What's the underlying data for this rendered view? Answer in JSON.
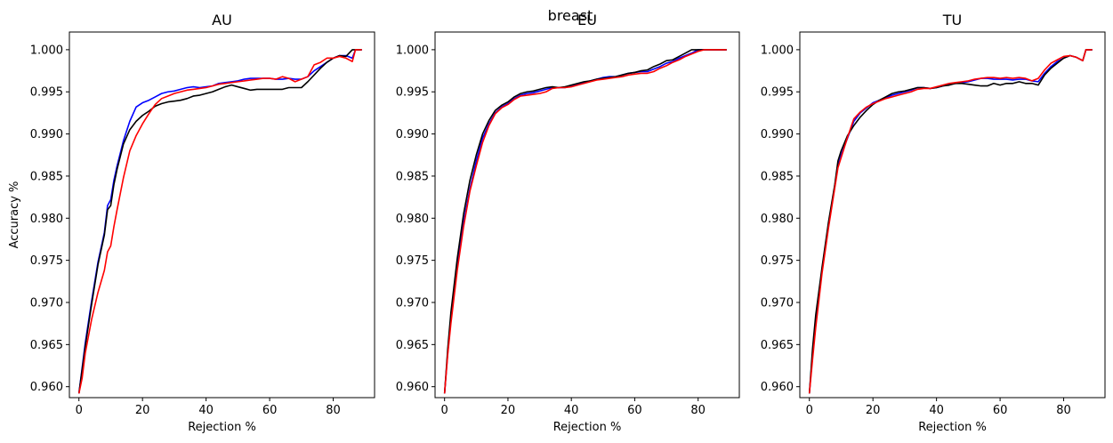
{
  "figure": {
    "suptitle": "breast"
  },
  "colors": {
    "blue": "#0000ff",
    "black": "#000000",
    "red": "#ff0000"
  },
  "chart_data": [
    {
      "type": "line",
      "title": "AU",
      "xlabel": "Rejection %",
      "ylabel": "Accuracy %",
      "xlim": [
        -3,
        93
      ],
      "ylim": [
        0.9587,
        1.0021
      ],
      "xticks": [
        0,
        20,
        40,
        60,
        80
      ],
      "yticks": [
        0.96,
        0.965,
        0.97,
        0.975,
        0.98,
        0.985,
        0.99,
        0.995,
        1.0
      ],
      "yticklabels": [
        "0.960",
        "0.965",
        "0.970",
        "0.975",
        "0.980",
        "0.985",
        "0.990",
        "0.995",
        "1.000"
      ],
      "grid": false,
      "series": [
        {
          "color": "#0000ff",
          "x": [
            0,
            1,
            2,
            4,
            6,
            8,
            9,
            10,
            11,
            12,
            14,
            16,
            18,
            20,
            22,
            24,
            26,
            28,
            30,
            32,
            34,
            36,
            38,
            40,
            42,
            44,
            46,
            48,
            50,
            52,
            54,
            56,
            58,
            60,
            62,
            64,
            66,
            68,
            70,
            72,
            74,
            76,
            78,
            80,
            82,
            84,
            86,
            87,
            89
          ],
          "y": [
            0.9592,
            0.9622,
            0.9652,
            0.9702,
            0.9748,
            0.9783,
            0.9815,
            0.9822,
            0.9845,
            0.9862,
            0.9892,
            0.9915,
            0.9932,
            0.9937,
            0.994,
            0.9944,
            0.9948,
            0.995,
            0.9951,
            0.9953,
            0.9955,
            0.9956,
            0.9955,
            0.9956,
            0.9957,
            0.996,
            0.9961,
            0.9962,
            0.9963,
            0.9965,
            0.9966,
            0.9966,
            0.9966,
            0.9966,
            0.9965,
            0.9965,
            0.9966,
            0.9965,
            0.9965,
            0.9968,
            0.9975,
            0.998,
            0.9985,
            0.999,
            0.9993,
            0.9993,
            0.999,
            1.0,
            1.0
          ]
        },
        {
          "color": "#000000",
          "x": [
            0,
            1,
            2,
            4,
            6,
            8,
            9,
            10,
            11,
            12,
            14,
            16,
            18,
            20,
            22,
            24,
            26,
            28,
            30,
            32,
            34,
            36,
            38,
            40,
            42,
            44,
            46,
            48,
            50,
            52,
            54,
            56,
            58,
            60,
            62,
            64,
            66,
            68,
            70,
            72,
            74,
            76,
            78,
            80,
            82,
            84,
            86,
            87,
            89
          ],
          "y": [
            0.9592,
            0.962,
            0.9648,
            0.9698,
            0.9745,
            0.978,
            0.981,
            0.9815,
            0.984,
            0.9858,
            0.9888,
            0.9905,
            0.9915,
            0.9922,
            0.9927,
            0.9933,
            0.9936,
            0.9938,
            0.9939,
            0.994,
            0.9942,
            0.9945,
            0.9946,
            0.9948,
            0.995,
            0.9953,
            0.9956,
            0.9958,
            0.9956,
            0.9954,
            0.9952,
            0.9953,
            0.9953,
            0.9953,
            0.9953,
            0.9953,
            0.9955,
            0.9955,
            0.9955,
            0.9962,
            0.997,
            0.9978,
            0.9985,
            0.999,
            0.9993,
            0.9992,
            1.0,
            1.0,
            1.0
          ]
        },
        {
          "color": "#ff0000",
          "x": [
            0,
            1,
            2,
            4,
            6,
            8,
            9,
            10,
            11,
            12,
            14,
            16,
            18,
            20,
            22,
            24,
            26,
            28,
            30,
            32,
            34,
            36,
            38,
            40,
            42,
            44,
            46,
            48,
            50,
            52,
            54,
            56,
            58,
            60,
            62,
            64,
            66,
            68,
            70,
            72,
            74,
            76,
            78,
            80,
            82,
            84,
            86,
            87,
            89
          ],
          "y": [
            0.9592,
            0.961,
            0.964,
            0.968,
            0.9712,
            0.9738,
            0.976,
            0.9767,
            0.979,
            0.981,
            0.9848,
            0.988,
            0.9898,
            0.9912,
            0.9924,
            0.9935,
            0.9942,
            0.9945,
            0.9948,
            0.995,
            0.9952,
            0.9953,
            0.9954,
            0.9955,
            0.9957,
            0.9959,
            0.996,
            0.9961,
            0.9962,
            0.9963,
            0.9964,
            0.9965,
            0.9966,
            0.9966,
            0.9965,
            0.9968,
            0.9966,
            0.9962,
            0.9965,
            0.9968,
            0.9982,
            0.9985,
            0.999,
            0.999,
            0.9992,
            0.999,
            0.9986,
            1.0,
            1.0
          ]
        }
      ]
    },
    {
      "type": "line",
      "title": "EU",
      "xlabel": "Rejection %",
      "ylabel": "",
      "xlim": [
        -3,
        93
      ],
      "ylim": [
        0.9587,
        1.0021
      ],
      "xticks": [
        0,
        20,
        40,
        60,
        80
      ],
      "yticks": [
        0.96,
        0.965,
        0.97,
        0.975,
        0.98,
        0.985,
        0.99,
        0.995,
        1.0
      ],
      "yticklabels": [
        "0.960",
        "0.965",
        "0.970",
        "0.975",
        "0.980",
        "0.985",
        "0.990",
        "0.995",
        "1.000"
      ],
      "grid": false,
      "series": [
        {
          "color": "#0000ff",
          "x": [
            0,
            1,
            2,
            4,
            6,
            8,
            10,
            12,
            14,
            16,
            18,
            20,
            22,
            24,
            26,
            28,
            30,
            32,
            34,
            36,
            38,
            40,
            42,
            44,
            46,
            48,
            50,
            52,
            54,
            56,
            58,
            60,
            62,
            64,
            66,
            68,
            70,
            72,
            74,
            76,
            78,
            80,
            82,
            84,
            86,
            88,
            89
          ],
          "y": [
            0.9592,
            0.964,
            0.968,
            0.9745,
            0.9795,
            0.9835,
            0.9868,
            0.9895,
            0.9912,
            0.9925,
            0.9932,
            0.9936,
            0.9942,
            0.9946,
            0.9948,
            0.9949,
            0.9951,
            0.9953,
            0.9955,
            0.9955,
            0.9955,
            0.9957,
            0.9959,
            0.9961,
            0.9963,
            0.9965,
            0.9967,
            0.9968,
            0.9968,
            0.997,
            0.9972,
            0.9973,
            0.9974,
            0.9974,
            0.9977,
            0.998,
            0.9984,
            0.9986,
            0.999,
            0.9993,
            0.9996,
            1.0,
            1.0,
            1.0,
            1.0,
            1.0,
            1.0
          ]
        },
        {
          "color": "#000000",
          "x": [
            0,
            1,
            2,
            4,
            6,
            8,
            10,
            12,
            14,
            16,
            18,
            20,
            22,
            24,
            26,
            28,
            30,
            32,
            34,
            36,
            38,
            40,
            42,
            44,
            46,
            48,
            50,
            52,
            54,
            56,
            58,
            60,
            62,
            64,
            66,
            68,
            70,
            72,
            74,
            76,
            78,
            80,
            82,
            84,
            86,
            88,
            89
          ],
          "y": [
            0.9592,
            0.9645,
            0.9688,
            0.9752,
            0.9805,
            0.9845,
            0.9875,
            0.99,
            0.9916,
            0.9928,
            0.9934,
            0.9938,
            0.9944,
            0.9948,
            0.995,
            0.9951,
            0.9953,
            0.9955,
            0.9956,
            0.9955,
            0.9956,
            0.9958,
            0.996,
            0.9962,
            0.9963,
            0.9965,
            0.9966,
            0.9967,
            0.9968,
            0.997,
            0.9972,
            0.9973,
            0.9975,
            0.9976,
            0.998,
            0.9983,
            0.9987,
            0.9988,
            0.9992,
            0.9996,
            1.0,
            1.0,
            1.0,
            1.0,
            1.0,
            1.0,
            1.0
          ]
        },
        {
          "color": "#ff0000",
          "x": [
            0,
            1,
            2,
            4,
            6,
            8,
            10,
            12,
            14,
            16,
            18,
            20,
            22,
            24,
            26,
            28,
            30,
            32,
            34,
            36,
            38,
            40,
            42,
            44,
            46,
            48,
            50,
            52,
            54,
            56,
            58,
            60,
            62,
            64,
            66,
            68,
            70,
            72,
            74,
            76,
            78,
            80,
            82,
            84,
            86,
            88,
            89
          ],
          "y": [
            0.9592,
            0.9638,
            0.9675,
            0.9738,
            0.979,
            0.9832,
            0.9862,
            0.989,
            0.991,
            0.9924,
            0.9931,
            0.9935,
            0.9941,
            0.9945,
            0.9946,
            0.9947,
            0.9948,
            0.995,
            0.9954,
            0.9955,
            0.9955,
            0.9956,
            0.9958,
            0.996,
            0.9962,
            0.9964,
            0.9965,
            0.9966,
            0.9967,
            0.9968,
            0.997,
            0.9971,
            0.9972,
            0.9972,
            0.9974,
            0.9978,
            0.9981,
            0.9985,
            0.9988,
            0.9992,
            0.9995,
            0.9998,
            1.0,
            1.0,
            1.0,
            1.0,
            1.0
          ]
        }
      ]
    },
    {
      "type": "line",
      "title": "TU",
      "xlabel": "Rejection %",
      "ylabel": "",
      "xlim": [
        -3,
        93
      ],
      "ylim": [
        0.9587,
        1.0021
      ],
      "xticks": [
        0,
        20,
        40,
        60,
        80
      ],
      "yticks": [
        0.96,
        0.965,
        0.97,
        0.975,
        0.98,
        0.985,
        0.99,
        0.995,
        1.0
      ],
      "yticklabels": [
        "0.960",
        "0.965",
        "0.970",
        "0.975",
        "0.980",
        "0.985",
        "0.990",
        "0.995",
        "1.000"
      ],
      "grid": false,
      "series": [
        {
          "color": "#0000ff",
          "x": [
            0,
            1,
            2,
            4,
            6,
            8,
            9,
            10,
            12,
            14,
            16,
            18,
            20,
            22,
            24,
            26,
            28,
            30,
            32,
            34,
            36,
            38,
            40,
            42,
            44,
            46,
            48,
            50,
            52,
            54,
            56,
            58,
            60,
            62,
            64,
            66,
            68,
            70,
            72,
            74,
            76,
            78,
            80,
            82,
            84,
            86,
            87,
            89
          ],
          "y": [
            0.9592,
            0.9638,
            0.9678,
            0.9738,
            0.979,
            0.9838,
            0.9862,
            0.9875,
            0.9895,
            0.9915,
            0.9925,
            0.9931,
            0.9937,
            0.994,
            0.9943,
            0.9946,
            0.9948,
            0.995,
            0.9952,
            0.9955,
            0.9955,
            0.9954,
            0.9955,
            0.9957,
            0.9959,
            0.996,
            0.9961,
            0.9962,
            0.9964,
            0.9966,
            0.9966,
            0.9965,
            0.9965,
            0.9965,
            0.9964,
            0.9965,
            0.9965,
            0.9963,
            0.9962,
            0.9972,
            0.998,
            0.9986,
            0.999,
            0.9993,
            0.9991,
            0.9987,
            1.0,
            1.0
          ]
        },
        {
          "color": "#000000",
          "x": [
            0,
            1,
            2,
            4,
            6,
            8,
            9,
            10,
            12,
            14,
            16,
            18,
            20,
            22,
            24,
            26,
            28,
            30,
            32,
            34,
            36,
            38,
            40,
            42,
            44,
            46,
            48,
            50,
            52,
            54,
            56,
            58,
            60,
            62,
            64,
            66,
            68,
            70,
            72,
            74,
            76,
            78,
            80,
            82,
            84,
            86,
            87,
            89
          ],
          "y": [
            0.9592,
            0.9645,
            0.9685,
            0.9742,
            0.9795,
            0.984,
            0.9868,
            0.988,
            0.9898,
            0.991,
            0.992,
            0.9928,
            0.9935,
            0.994,
            0.9944,
            0.9948,
            0.995,
            0.9951,
            0.9953,
            0.9955,
            0.9955,
            0.9954,
            0.9955,
            0.9957,
            0.9958,
            0.996,
            0.996,
            0.9959,
            0.9958,
            0.9957,
            0.9957,
            0.996,
            0.9958,
            0.996,
            0.996,
            0.9962,
            0.996,
            0.996,
            0.9958,
            0.997,
            0.9978,
            0.9984,
            0.999,
            0.9993,
            0.9991,
            0.9987,
            1.0,
            1.0
          ]
        },
        {
          "color": "#ff0000",
          "x": [
            0,
            1,
            2,
            4,
            6,
            8,
            9,
            10,
            12,
            14,
            16,
            18,
            20,
            22,
            24,
            26,
            28,
            30,
            32,
            34,
            36,
            38,
            40,
            42,
            44,
            46,
            48,
            50,
            52,
            54,
            56,
            58,
            60,
            62,
            64,
            66,
            68,
            70,
            72,
            74,
            76,
            78,
            80,
            82,
            84,
            86,
            87,
            89
          ],
          "y": [
            0.9592,
            0.9632,
            0.967,
            0.9735,
            0.9788,
            0.9836,
            0.986,
            0.9872,
            0.9896,
            0.9918,
            0.9926,
            0.9932,
            0.9936,
            0.9939,
            0.9942,
            0.9944,
            0.9946,
            0.9948,
            0.995,
            0.9953,
            0.9954,
            0.9954,
            0.9956,
            0.9958,
            0.996,
            0.9961,
            0.9962,
            0.9963,
            0.9965,
            0.9966,
            0.9967,
            0.9967,
            0.9966,
            0.9967,
            0.9966,
            0.9967,
            0.9966,
            0.9963,
            0.9966,
            0.9976,
            0.9984,
            0.9988,
            0.9992,
            0.9993,
            0.9991,
            0.9987,
            1.0,
            1.0
          ]
        }
      ]
    }
  ]
}
